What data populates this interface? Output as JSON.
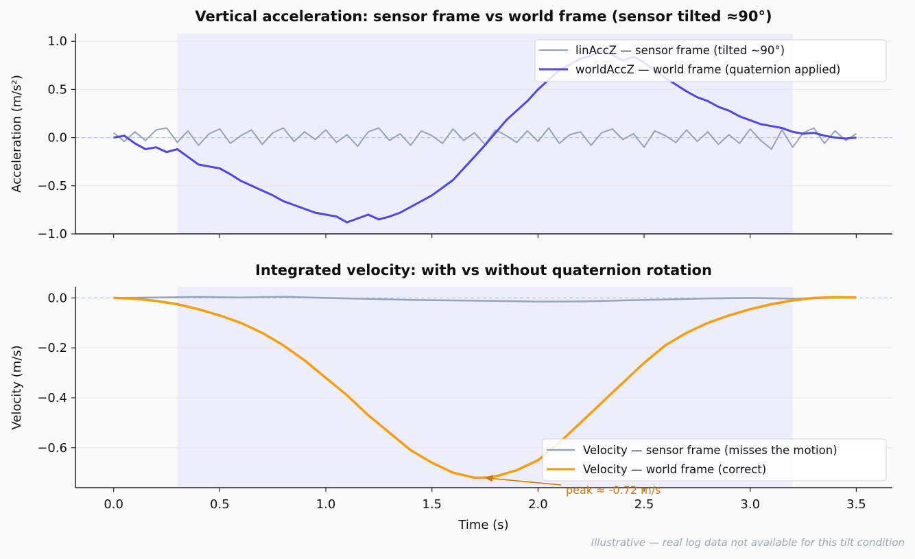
{
  "footnote": "Illustrative — real log data not available for this tilt condition",
  "colors": {
    "sensor": "#94a3b8",
    "world_acc": "#4f46e5",
    "world_vel": "#f59e0b",
    "annotation": "#d97706",
    "shade": "#eeedfb",
    "zero_line": "#b8c6dc"
  },
  "chart_data": [
    {
      "type": "line",
      "title": "Vertical acceleration: sensor frame vs world frame  (sensor tilted ≈90°)",
      "ylabel": "Acceleration (m/s²)",
      "xlim": [
        -0.18,
        3.67
      ],
      "ylim": [
        -1.0,
        1.08
      ],
      "yticks": [
        -1.0,
        -0.5,
        0.0,
        0.5,
        1.0
      ],
      "ytick_labels": [
        "−1.0",
        "−0.5",
        "0.0",
        "0.5",
        "1.0"
      ],
      "xticks": [
        0.0,
        0.5,
        1.0,
        1.5,
        2.0,
        2.5,
        3.0,
        3.5
      ],
      "shaded_x_range": [
        0.3,
        3.2
      ],
      "zero_reference_line": 0.0,
      "grid": "horizontal",
      "legend_position": "upper-right",
      "series": [
        {
          "name": "linAccZ — sensor frame (tilted ~90°)",
          "x": [
            0.0,
            0.05,
            0.1,
            0.15,
            0.2,
            0.25,
            0.3,
            0.35,
            0.4,
            0.45,
            0.5,
            0.55,
            0.6,
            0.65,
            0.7,
            0.75,
            0.8,
            0.85,
            0.9,
            0.95,
            1.0,
            1.05,
            1.1,
            1.15,
            1.2,
            1.25,
            1.3,
            1.35,
            1.4,
            1.45,
            1.5,
            1.55,
            1.6,
            1.65,
            1.7,
            1.75,
            1.8,
            1.85,
            1.9,
            1.95,
            2.0,
            2.05,
            2.1,
            2.15,
            2.2,
            2.25,
            2.3,
            2.35,
            2.4,
            2.45,
            2.5,
            2.55,
            2.6,
            2.65,
            2.7,
            2.75,
            2.8,
            2.85,
            2.9,
            2.95,
            3.0,
            3.05,
            3.1,
            3.15,
            3.2,
            3.25,
            3.3,
            3.35,
            3.4,
            3.45,
            3.5
          ],
          "values": [
            0.05,
            -0.04,
            0.06,
            -0.03,
            0.08,
            0.1,
            -0.05,
            0.07,
            -0.08,
            0.04,
            0.09,
            -0.06,
            0.02,
            0.08,
            -0.07,
            0.05,
            0.1,
            -0.04,
            0.06,
            -0.02,
            0.08,
            -0.05,
            0.03,
            -0.09,
            0.06,
            0.1,
            -0.03,
            0.04,
            -0.08,
            0.07,
            0.02,
            -0.06,
            0.09,
            -0.03,
            0.05,
            -0.07,
            0.08,
            0.02,
            -0.05,
            0.07,
            -0.04,
            0.1,
            -0.06,
            0.03,
            0.06,
            -0.08,
            0.05,
            0.09,
            -0.02,
            0.04,
            -0.1,
            0.07,
            0.02,
            -0.05,
            0.08,
            -0.04,
            0.06,
            -0.07,
            0.03,
            -0.06,
            0.09,
            -0.03,
            -0.12,
            0.08,
            -0.1,
            0.05,
            0.1,
            -0.06,
            0.07,
            -0.03,
            0.04
          ]
        },
        {
          "name": "worldAccZ — world frame (quaternion applied)",
          "x": [
            0.0,
            0.05,
            0.1,
            0.15,
            0.2,
            0.25,
            0.3,
            0.35,
            0.4,
            0.45,
            0.5,
            0.55,
            0.6,
            0.65,
            0.7,
            0.75,
            0.8,
            0.85,
            0.9,
            0.95,
            1.0,
            1.05,
            1.1,
            1.15,
            1.2,
            1.25,
            1.3,
            1.35,
            1.4,
            1.45,
            1.5,
            1.55,
            1.6,
            1.65,
            1.7,
            1.75,
            1.8,
            1.85,
            1.9,
            1.95,
            2.0,
            2.05,
            2.1,
            2.15,
            2.2,
            2.25,
            2.3,
            2.35,
            2.4,
            2.45,
            2.5,
            2.55,
            2.6,
            2.65,
            2.7,
            2.75,
            2.8,
            2.85,
            2.9,
            2.95,
            3.0,
            3.05,
            3.1,
            3.15,
            3.2,
            3.25,
            3.3,
            3.35,
            3.4,
            3.45,
            3.5
          ],
          "values": [
            0.0,
            0.02,
            -0.06,
            -0.12,
            -0.1,
            -0.15,
            -0.12,
            -0.2,
            -0.28,
            -0.3,
            -0.32,
            -0.38,
            -0.45,
            -0.5,
            -0.55,
            -0.6,
            -0.66,
            -0.7,
            -0.74,
            -0.78,
            -0.8,
            -0.82,
            -0.88,
            -0.84,
            -0.8,
            -0.85,
            -0.82,
            -0.78,
            -0.72,
            -0.66,
            -0.6,
            -0.52,
            -0.44,
            -0.32,
            -0.2,
            -0.08,
            0.05,
            0.18,
            0.28,
            0.38,
            0.5,
            0.6,
            0.7,
            0.76,
            0.82,
            0.85,
            0.9,
            0.86,
            0.8,
            0.84,
            0.78,
            0.7,
            0.62,
            0.55,
            0.48,
            0.42,
            0.38,
            0.32,
            0.28,
            0.22,
            0.18,
            0.14,
            0.12,
            0.1,
            0.06,
            0.04,
            0.05,
            0.02,
            0.0,
            -0.01,
            0.0
          ]
        }
      ]
    },
    {
      "type": "line",
      "title": "Integrated velocity: with vs without quaternion rotation",
      "xlabel": "Time (s)",
      "ylabel": "Velocity (m/s)",
      "xlim": [
        -0.18,
        3.67
      ],
      "ylim": [
        -0.76,
        0.045
      ],
      "yticks": [
        0.0,
        -0.2,
        -0.4,
        -0.6
      ],
      "ytick_labels": [
        "0.0",
        "−0.2",
        "−0.4",
        "−0.6"
      ],
      "xticks": [
        0.0,
        0.5,
        1.0,
        1.5,
        2.0,
        2.5,
        3.0,
        3.5
      ],
      "xtick_labels": [
        "0.0",
        "0.5",
        "1.0",
        "1.5",
        "2.0",
        "2.5",
        "3.0",
        "3.5"
      ],
      "shaded_x_range": [
        0.3,
        3.2
      ],
      "zero_reference_line": 0.0,
      "grid": "horizontal",
      "legend_position": "lower-right",
      "series": [
        {
          "name": "Velocity — sensor frame  (misses the motion)",
          "x": [
            0.0,
            0.2,
            0.4,
            0.6,
            0.8,
            1.0,
            1.2,
            1.4,
            1.6,
            1.8,
            2.0,
            2.2,
            2.4,
            2.6,
            2.8,
            3.0,
            3.2,
            3.35,
            3.5
          ],
          "values": [
            0.0,
            0.002,
            0.004,
            0.002,
            0.005,
            0.0,
            -0.004,
            -0.008,
            -0.01,
            -0.012,
            -0.015,
            -0.014,
            -0.01,
            -0.006,
            -0.002,
            0.0,
            -0.003,
            0.0,
            0.002
          ]
        },
        {
          "name": "Velocity — world frame  (correct)",
          "x": [
            0.0,
            0.1,
            0.2,
            0.3,
            0.4,
            0.5,
            0.6,
            0.7,
            0.8,
            0.9,
            1.0,
            1.1,
            1.2,
            1.3,
            1.4,
            1.5,
            1.6,
            1.7,
            1.75,
            1.8,
            1.9,
            2.0,
            2.1,
            2.2,
            2.3,
            2.4,
            2.5,
            2.6,
            2.7,
            2.8,
            2.9,
            3.0,
            3.1,
            3.2,
            3.3,
            3.4,
            3.5
          ],
          "values": [
            0.0,
            -0.003,
            -0.012,
            -0.025,
            -0.045,
            -0.07,
            -0.1,
            -0.14,
            -0.19,
            -0.25,
            -0.32,
            -0.39,
            -0.47,
            -0.54,
            -0.61,
            -0.66,
            -0.7,
            -0.72,
            -0.72,
            -0.715,
            -0.69,
            -0.65,
            -0.58,
            -0.5,
            -0.42,
            -0.34,
            -0.26,
            -0.19,
            -0.14,
            -0.1,
            -0.07,
            -0.045,
            -0.025,
            -0.01,
            0.0,
            0.003,
            0.002
          ]
        }
      ],
      "annotation": {
        "text": "peak ≈ -0.72 m/s",
        "x": 1.75,
        "y": -0.72
      }
    }
  ]
}
